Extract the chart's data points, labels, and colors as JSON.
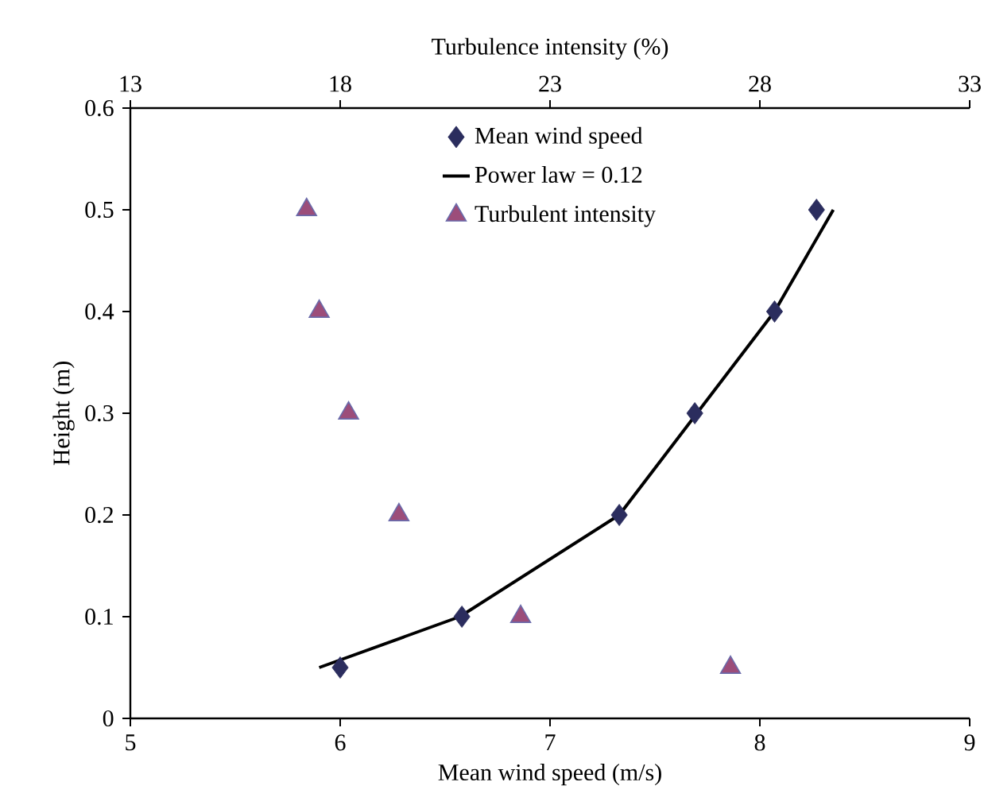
{
  "chart_data": {
    "type": "scatter",
    "xlabel": "Mean wind speed (m/s)",
    "x2label": "Turbulence intensity (%)",
    "ylabel": "Height (m)",
    "xlim": [
      5,
      9
    ],
    "xticks": [
      5,
      6,
      7,
      8,
      9
    ],
    "x2lim": [
      13,
      33
    ],
    "x2ticks": [
      13,
      18,
      23,
      28,
      33
    ],
    "ylim": [
      0,
      0.6
    ],
    "yticks": [
      0,
      0.1,
      0.2,
      0.3,
      0.4,
      0.5,
      0.6
    ],
    "legend": "top",
    "grid": false,
    "series": [
      {
        "name": "Mean wind speed",
        "marker": "diamond",
        "color": "#2b2d5e",
        "x": [
          6.0,
          6.58,
          7.33,
          7.69,
          8.07,
          8.27
        ],
        "values": [
          0.05,
          0.1,
          0.2,
          0.3,
          0.4,
          0.5
        ]
      },
      {
        "name": "Power law = 0.12",
        "type": "line",
        "marker": "none",
        "line_style": "solid",
        "color": "#000000",
        "x": [
          5.9,
          6.57,
          7.33,
          7.7,
          8.07,
          8.35
        ],
        "values": [
          0.05,
          0.1,
          0.2,
          0.3,
          0.4,
          0.5
        ]
      },
      {
        "name": "Turbulent intensity",
        "marker": "triangle",
        "axis": "x2",
        "color": "#9c4d7a",
        "x": [
          17.2,
          17.5,
          18.2,
          19.4,
          22.3,
          27.3
        ],
        "values": [
          0.5,
          0.4,
          0.3,
          0.2,
          0.1,
          0.05
        ]
      }
    ]
  }
}
